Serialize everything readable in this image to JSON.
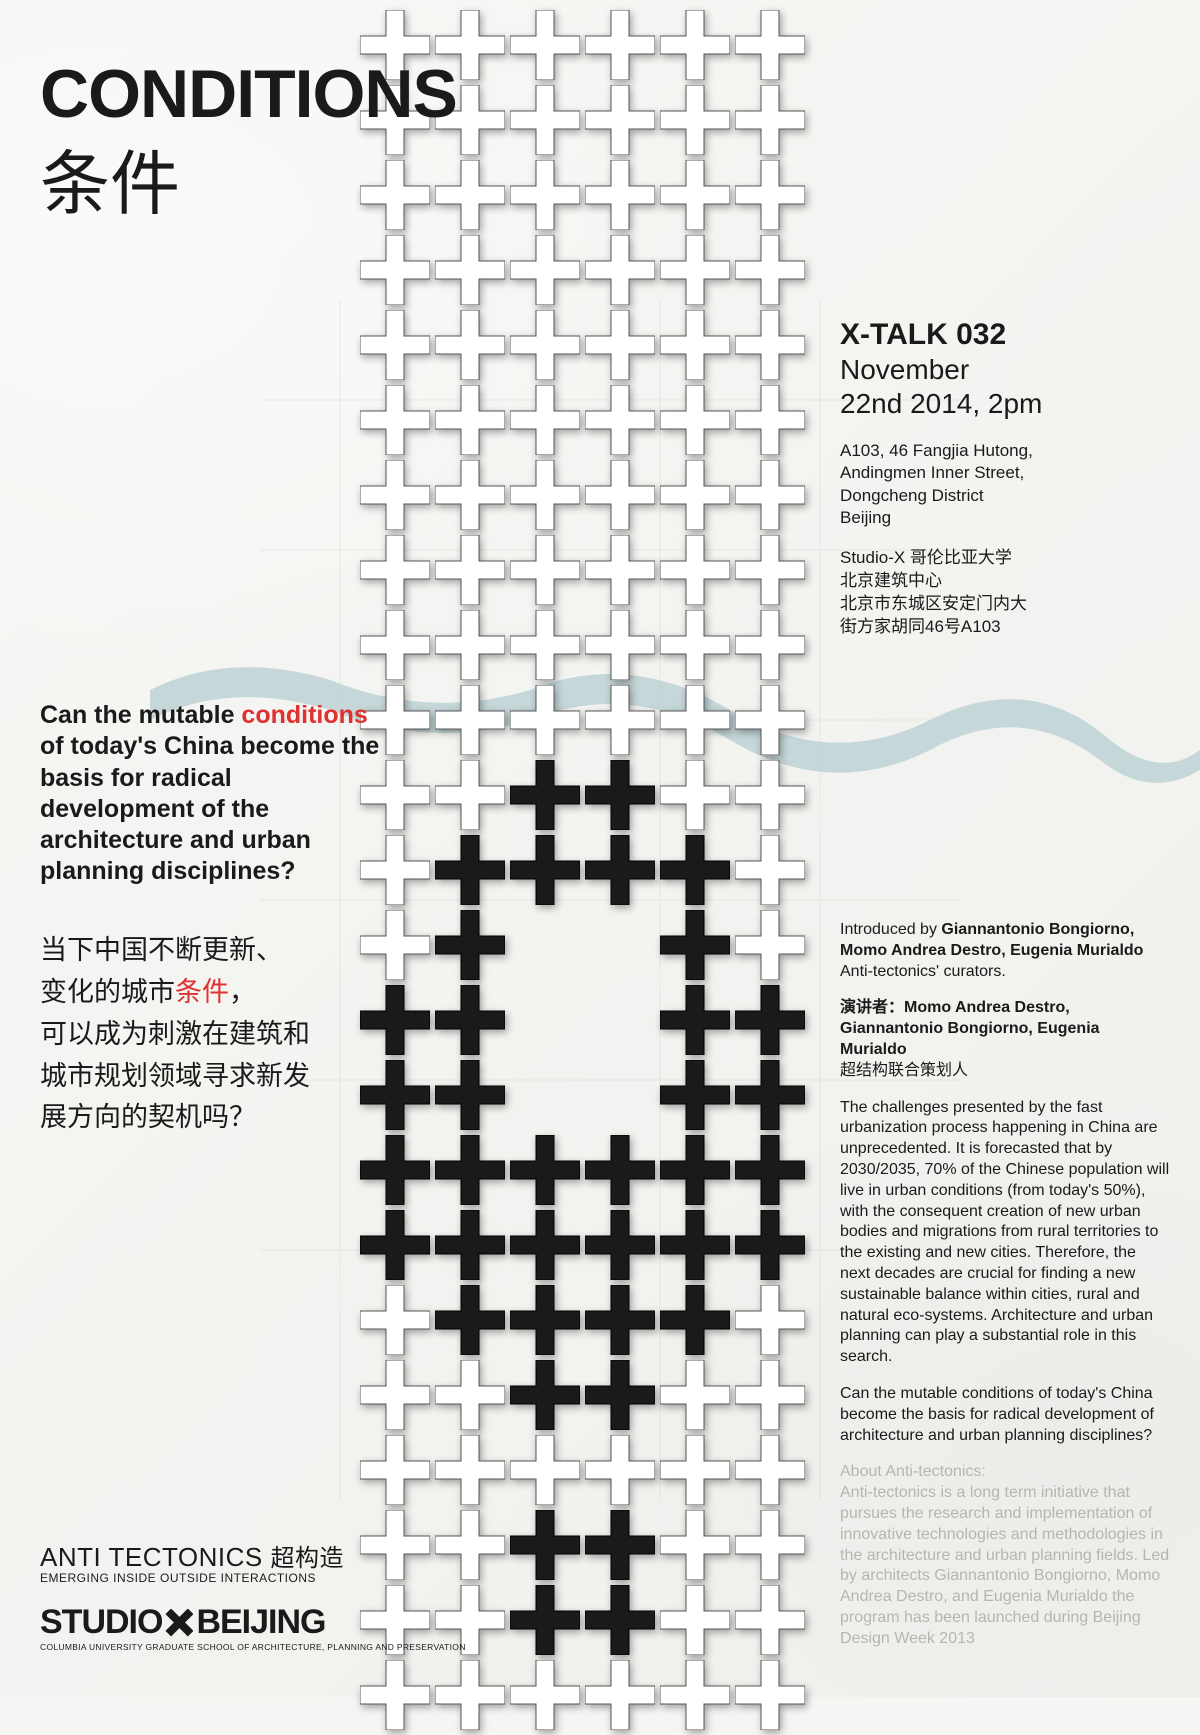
{
  "title": {
    "en": "CONDITIONS",
    "zh": "条件"
  },
  "question_en": {
    "pre": "Can the mutable ",
    "hl": "conditions",
    "post": " of today's China become the basis for radical development of the architecture and urban planning disciplines?"
  },
  "question_zh": {
    "l1": "当下中国不断更新、",
    "l2a": "变化的城市",
    "l2hl": "条件",
    "l2b": "，",
    "l3": "可以成为刺激在建筑和",
    "l4": "城市规划领域寻求新发",
    "l5": "展方向的契机吗？"
  },
  "event": {
    "title": "X-TALK 032",
    "date1": "November",
    "date2": "22nd 2014, 2pm",
    "addr_en": "A103, 46 Fangjia Hutong,\nAndingmen Inner Street,\nDongcheng District\nBeijing",
    "addr_zh": "Studio-X 哥伦比亚大学\n北京建筑中心\n北京市东城区安定门内大\n街方家胡同46号A103"
  },
  "intro": {
    "by_label": "Introduced by ",
    "names_en": "Giannantonio Bongiorno, Momo Andrea Destro, Eugenia Murialdo",
    "role_en": "Anti-tectonics' curators.",
    "speakers_label": "演讲者：",
    "names_zh": "Momo Andrea Destro, Giannantonio Bongiorno, Eugenia Murialdo",
    "role_zh": "超结构联合策划人",
    "body1": "The challenges presented by the fast urbanization process happening in China are unprecedented. It is forecasted that by 2030/2035, 70% of the Chinese population will live in urban conditions (from today's 50%), with the consequent creation of new urban bodies and migrations from rural territories to the existing and new cities. Therefore, the next decades are crucial for finding a new sustainable balance within cities, rural and natural eco-systems. Architecture and urban planning can play a substantial role in this search.",
    "body2": "Can the mutable conditions of today's China become the basis for radical development of architecture and urban planning disciplines?",
    "about_title": "About Anti-tectonics:",
    "about_body": "Anti-tectonics is a long term initiative that pursues the research and implementation of innovative technologies and methodologies in the architecture and urban planning fields. Led by architects Giannantonio Bongiorno, Momo Andrea Destro, and Eugenia Murialdo the program has been launched during Beijing Design Week 2013"
  },
  "footer": {
    "anti": "ANTI TECTONICS ",
    "anti_zh": "超构造",
    "anti_sub": "EMERGING INSIDE OUTSIDE INTERACTIONS",
    "studio_a": "STUDIO",
    "studio_b": "BEIJING",
    "studio_sub": "COLUMBIA UNIVERSITY GRADUATE SCHOOL OF ARCHITECTURE, PLANNING AND PRESERVATION"
  },
  "graphics": {
    "cross_white_fill": "#ffffff",
    "cross_white_stroke": "#555555",
    "cross_black_fill": "#1a1a1a",
    "river_fill": "#c0d4d6",
    "cross_size": 70,
    "cross_gap": 75,
    "cols": 6,
    "rows": 23,
    "black_cells": [
      [
        10,
        2
      ],
      [
        10,
        3
      ],
      [
        11,
        1
      ],
      [
        11,
        2
      ],
      [
        11,
        3
      ],
      [
        11,
        4
      ],
      [
        12,
        1
      ],
      [
        12,
        4
      ],
      [
        13,
        0
      ],
      [
        13,
        1
      ],
      [
        13,
        4
      ],
      [
        13,
        5
      ],
      [
        14,
        0
      ],
      [
        14,
        1
      ],
      [
        14,
        4
      ],
      [
        14,
        5
      ],
      [
        15,
        0
      ],
      [
        15,
        1
      ],
      [
        15,
        2
      ],
      [
        15,
        3
      ],
      [
        15,
        4
      ],
      [
        15,
        5
      ],
      [
        16,
        0
      ],
      [
        16,
        1
      ],
      [
        16,
        2
      ],
      [
        16,
        3
      ],
      [
        16,
        4
      ],
      [
        16,
        5
      ],
      [
        17,
        1
      ],
      [
        17,
        2
      ],
      [
        17,
        3
      ],
      [
        17,
        4
      ],
      [
        18,
        2
      ],
      [
        18,
        3
      ],
      [
        20,
        2
      ],
      [
        20,
        3
      ],
      [
        21,
        2
      ],
      [
        21,
        3
      ]
    ],
    "omit_cells": [
      [
        12,
        2
      ],
      [
        12,
        3
      ],
      [
        13,
        2
      ],
      [
        13,
        3
      ],
      [
        14,
        2
      ],
      [
        14,
        3
      ]
    ]
  }
}
